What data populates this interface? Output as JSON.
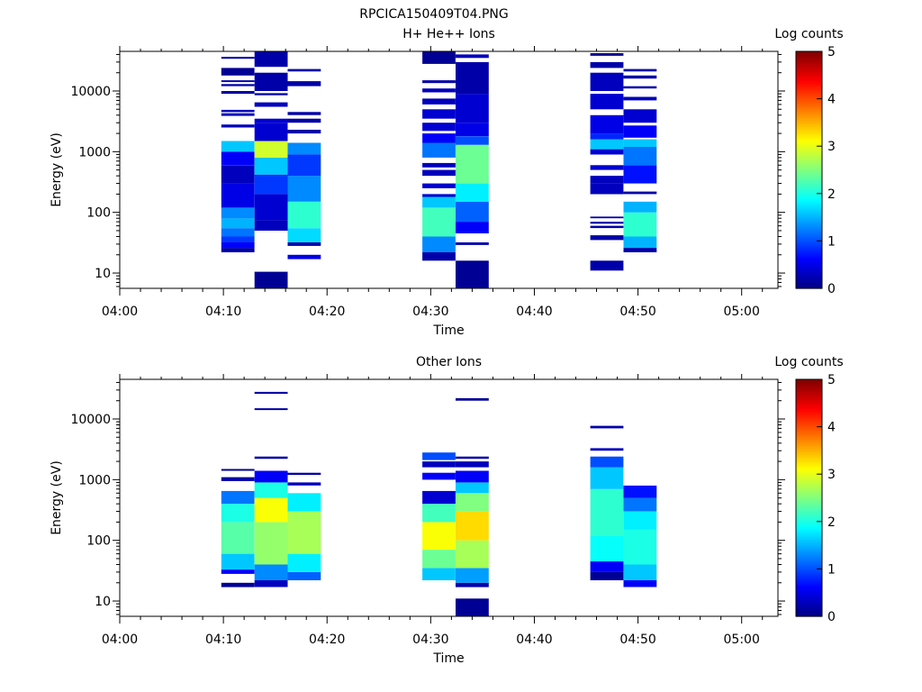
{
  "title": "RPCICA150409T04.PNG",
  "colors": {
    "frame": "#000000",
    "empty": "#ffffff"
  },
  "chart_data": [
    {
      "type": "heatmap",
      "title": "H+ He++ Ions",
      "xlabel": "Time",
      "ylabel": "Energy (eV)",
      "xticks": [
        "04:00",
        "04:10",
        "04:20",
        "04:30",
        "04:40",
        "04:50",
        "05:00"
      ],
      "xlim_minutes": [
        0,
        63.5
      ],
      "yscale": "log",
      "ylim": [
        5.6,
        45000
      ],
      "yticks": [
        10,
        100,
        1000,
        10000
      ],
      "yticklabels": [
        "10",
        "100",
        "1000",
        "10000"
      ],
      "colorbar": {
        "label": "Log counts",
        "range": [
          0,
          5
        ],
        "ticks": [
          "0",
          "1",
          "2",
          "3",
          "4",
          "5"
        ],
        "colormap": "jet"
      },
      "columns": [
        {
          "t0": 9.8,
          "t1": 13.0,
          "bands": [
            [
              22,
              26,
              0.2
            ],
            [
              26,
              32,
              0.6
            ],
            [
              32,
              40,
              0.9
            ],
            [
              40,
              55,
              1.2
            ],
            [
              55,
              80,
              1.5
            ],
            [
              80,
              120,
              1.3
            ],
            [
              120,
              300,
              0.5
            ],
            [
              300,
              600,
              0.3
            ],
            [
              600,
              1000,
              0.6
            ],
            [
              1000,
              1500,
              1.6
            ],
            [
              2500,
              2800,
              0.3
            ],
            [
              3900,
              4300,
              0.3
            ],
            [
              4500,
              4900,
              0.3
            ],
            [
              9000,
              10000,
              0.2
            ],
            [
              12000,
              13000,
              0.2
            ],
            [
              14000,
              15000,
              0.2
            ],
            [
              18000,
              24000,
              0.1
            ],
            [
              34000,
              36500,
              0.2
            ]
          ]
        },
        {
          "t0": 13.0,
          "t1": 16.2,
          "bands": [
            [
              5.6,
              10.5,
              0.1
            ],
            [
              50,
              75,
              0.3
            ],
            [
              75,
              200,
              0.4
            ],
            [
              200,
              420,
              0.9
            ],
            [
              420,
              800,
              1.6
            ],
            [
              800,
              1500,
              2.9
            ],
            [
              1500,
              3000,
              0.4
            ],
            [
              3000,
              3500,
              0.4
            ],
            [
              5500,
              6500,
              0.3
            ],
            [
              8500,
              9200,
              0.2
            ],
            [
              10000,
              20000,
              0.2
            ],
            [
              25000,
              45000,
              0.2
            ]
          ]
        },
        {
          "t0": 16.2,
          "t1": 19.4,
          "bands": [
            [
              17,
              20,
              0.5
            ],
            [
              28,
              32,
              0.2
            ],
            [
              32,
              55,
              1.7
            ],
            [
              55,
              150,
              2.1
            ],
            [
              150,
              400,
              1.3
            ],
            [
              400,
              900,
              0.9
            ],
            [
              900,
              1400,
              1.3
            ],
            [
              2000,
              2300,
              0.2
            ],
            [
              3000,
              3500,
              0.2
            ],
            [
              4000,
              4500,
              0.2
            ],
            [
              12000,
              14500,
              0.2
            ],
            [
              21000,
              23000,
              0.2
            ]
          ]
        },
        {
          "t0": 29.2,
          "t1": 32.4,
          "bands": [
            [
              16,
              22,
              0.2
            ],
            [
              22,
              40,
              1.3
            ],
            [
              40,
              120,
              2.2
            ],
            [
              120,
              180,
              1.6
            ],
            [
              180,
              200,
              0.4
            ],
            [
              250,
              300,
              0.4
            ],
            [
              400,
              500,
              0.3
            ],
            [
              550,
              650,
              0.3
            ],
            [
              800,
              1400,
              1.2
            ],
            [
              1400,
              2000,
              0.6
            ],
            [
              2200,
              3000,
              0.4
            ],
            [
              3500,
              5000,
              0.4
            ],
            [
              6000,
              7500,
              0.3
            ],
            [
              9500,
              11000,
              0.3
            ],
            [
              13500,
              15000,
              0.2
            ],
            [
              28000,
              45000,
              0.1
            ]
          ]
        },
        {
          "t0": 32.4,
          "t1": 35.6,
          "bands": [
            [
              5.6,
              16,
              0.1
            ],
            [
              29,
              32,
              0.2
            ],
            [
              45,
              70,
              0.6
            ],
            [
              70,
              150,
              1.1
            ],
            [
              150,
              300,
              1.8
            ],
            [
              300,
              1300,
              2.4
            ],
            [
              1300,
              1800,
              1.0
            ],
            [
              1800,
              3000,
              0.5
            ],
            [
              3000,
              9000,
              0.4
            ],
            [
              9000,
              30000,
              0.2
            ],
            [
              35000,
              40000,
              0.3
            ]
          ]
        },
        {
          "t0": 45.4,
          "t1": 48.6,
          "bands": [
            [
              11,
              16,
              0.2
            ],
            [
              35,
              42,
              0.2
            ],
            [
              55,
              60,
              0.2
            ],
            [
              65,
              70,
              0.2
            ],
            [
              80,
              85,
              0.2
            ],
            [
              200,
              300,
              0.3
            ],
            [
              300,
              400,
              0.3
            ],
            [
              500,
              600,
              0.4
            ],
            [
              900,
              1100,
              0.4
            ],
            [
              1100,
              1600,
              1.6
            ],
            [
              1600,
              2000,
              0.8
            ],
            [
              2000,
              4000,
              0.5
            ],
            [
              5000,
              9000,
              0.4
            ],
            [
              10000,
              20000,
              0.3
            ],
            [
              24000,
              30000,
              0.2
            ],
            [
              38000,
              42000,
              0.1
            ]
          ]
        },
        {
          "t0": 48.6,
          "t1": 51.8,
          "bands": [
            [
              22,
              26,
              0.2
            ],
            [
              26,
              40,
              1.5
            ],
            [
              40,
              100,
              2.1
            ],
            [
              100,
              150,
              1.5
            ],
            [
              200,
              220,
              0.2
            ],
            [
              300,
              600,
              0.7
            ],
            [
              600,
              1200,
              1.2
            ],
            [
              1200,
              1600,
              1.6
            ],
            [
              1700,
              2700,
              0.6
            ],
            [
              3000,
              5000,
              0.4
            ],
            [
              7000,
              8000,
              0.3
            ],
            [
              11000,
              12000,
              0.2
            ],
            [
              16000,
              18000,
              0.2
            ],
            [
              21000,
              23000,
              0.2
            ]
          ]
        }
      ]
    },
    {
      "type": "heatmap",
      "title": "Other Ions",
      "xlabel": "Time",
      "ylabel": "Energy (eV)",
      "xticks": [
        "04:00",
        "04:10",
        "04:20",
        "04:30",
        "04:40",
        "04:50",
        "05:00"
      ],
      "xlim_minutes": [
        0,
        63.5
      ],
      "yscale": "log",
      "ylim": [
        5.6,
        45000
      ],
      "yticks": [
        10,
        100,
        1000,
        10000
      ],
      "yticklabels": [
        "10",
        "100",
        "1000",
        "10000"
      ],
      "colorbar": {
        "label": "Log counts",
        "range": [
          0,
          5
        ],
        "ticks": [
          "0",
          "1",
          "2",
          "3",
          "4",
          "5"
        ],
        "colormap": "jet"
      },
      "columns": [
        {
          "t0": 9.8,
          "t1": 13.0,
          "bands": [
            [
              17,
              20,
              0.1
            ],
            [
              28,
              33,
              0.6
            ],
            [
              33,
              60,
              1.6
            ],
            [
              60,
              200,
              2.3
            ],
            [
              200,
              400,
              2.0
            ],
            [
              400,
              650,
              1.2
            ],
            [
              950,
              1100,
              0.2
            ],
            [
              1400,
              1500,
              0.1
            ]
          ]
        },
        {
          "t0": 13.0,
          "t1": 16.2,
          "bands": [
            [
              17,
              22,
              0.3
            ],
            [
              22,
              40,
              1.3
            ],
            [
              40,
              200,
              2.6
            ],
            [
              200,
              500,
              3.1
            ],
            [
              500,
              900,
              2.0
            ],
            [
              900,
              1400,
              0.6
            ],
            [
              2200,
              2400,
              0.2
            ],
            [
              14000,
              15000,
              0.2
            ],
            [
              26000,
              28000,
              0.2
            ]
          ]
        },
        {
          "t0": 16.2,
          "t1": 19.4,
          "bands": [
            [
              22,
              30,
              1.1
            ],
            [
              30,
              60,
              1.8
            ],
            [
              60,
              300,
              2.7
            ],
            [
              300,
              600,
              1.8
            ],
            [
              800,
              900,
              0.3
            ],
            [
              1200,
              1300,
              0.2
            ]
          ]
        },
        {
          "t0": 29.2,
          "t1": 32.4,
          "bands": [
            [
              22,
              35,
              1.6
            ],
            [
              35,
              70,
              2.4
            ],
            [
              70,
              200,
              3.1
            ],
            [
              200,
              400,
              2.2
            ],
            [
              400,
              650,
              0.4
            ],
            [
              1000,
              1300,
              0.6
            ],
            [
              1600,
              2000,
              0.3
            ],
            [
              2100,
              2800,
              1.0
            ]
          ]
        },
        {
          "t0": 32.4,
          "t1": 35.6,
          "bands": [
            [
              5.6,
              11,
              0.1
            ],
            [
              17,
              20,
              0.2
            ],
            [
              20,
              35,
              1.4
            ],
            [
              35,
              100,
              2.7
            ],
            [
              100,
              300,
              3.3
            ],
            [
              300,
              600,
              2.5
            ],
            [
              600,
              900,
              1.6
            ],
            [
              900,
              1400,
              0.6
            ],
            [
              1600,
              2000,
              0.3
            ],
            [
              2200,
              2400,
              0.2
            ],
            [
              20000,
              22000,
              0.1
            ]
          ]
        },
        {
          "t0": 45.4,
          "t1": 48.6,
          "bands": [
            [
              22,
              30,
              0.1
            ],
            [
              30,
              45,
              0.6
            ],
            [
              45,
              120,
              1.9
            ],
            [
              120,
              700,
              2.1
            ],
            [
              700,
              1600,
              1.6
            ],
            [
              1600,
              2400,
              1.0
            ],
            [
              3000,
              3300,
              0.3
            ],
            [
              7000,
              7700,
              0.2
            ]
          ]
        },
        {
          "t0": 48.6,
          "t1": 51.8,
          "bands": [
            [
              17,
              22,
              0.6
            ],
            [
              22,
              40,
              1.6
            ],
            [
              40,
              150,
              2.0
            ],
            [
              150,
              300,
              1.8
            ],
            [
              300,
              500,
              1.2
            ],
            [
              500,
              800,
              0.7
            ]
          ]
        }
      ]
    }
  ]
}
